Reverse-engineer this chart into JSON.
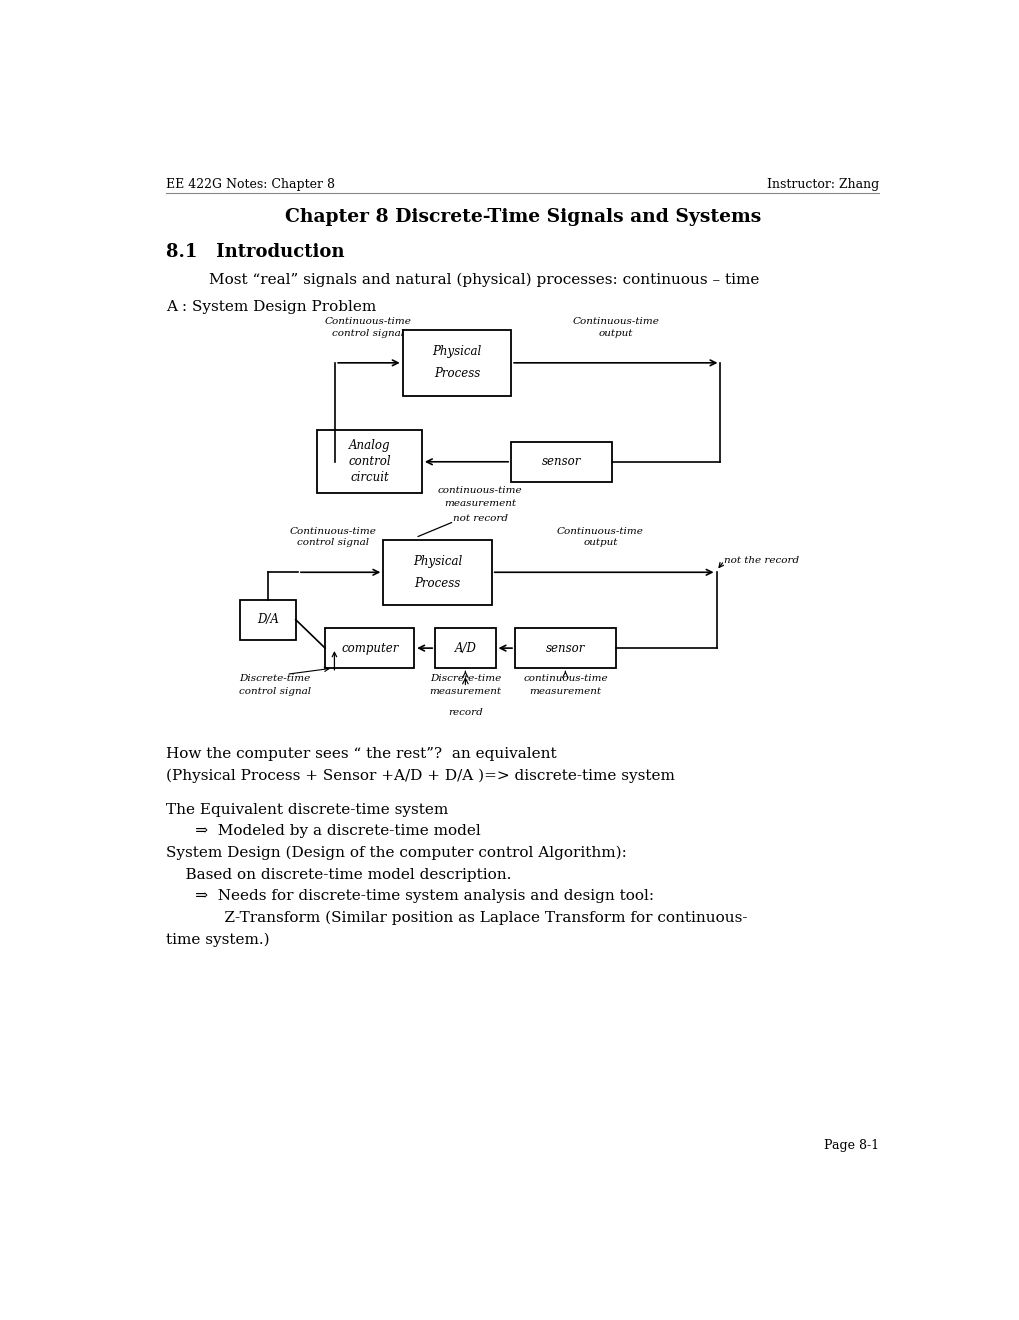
{
  "page_width": 10.2,
  "page_height": 13.2,
  "bg_color": "#ffffff",
  "header_left": "EE 422G Notes: Chapter 8",
  "header_right": "Instructor: Zhang",
  "title": "Chapter 8 Discrete-Time Signals and Systems",
  "section": "8.1   Introduction",
  "para1": "Most “real” signals and natural (physical) processes: continuous – time",
  "label_a": "A : System Design Problem",
  "footer": "Page 8-1",
  "body_text1": "How the computer sees “ the rest”?  an equivalent",
  "body_text2": "(Physical Process + Sensor +A/D + D/A )=> discrete-time system",
  "body_text3": "The Equivalent discrete-time system",
  "body_text4": "      ⇒  Modeled by a discrete-time model",
  "body_text5": "System Design (Design of the computer control Algorithm):",
  "body_text6": "    Based on discrete-time model description.",
  "body_text7": "      ⇒  Needs for discrete-time system analysis and design tool:",
  "body_text8": "            Z-Transform (Similar position as Laplace Transform for continuous-",
  "body_text9": "time system.)"
}
